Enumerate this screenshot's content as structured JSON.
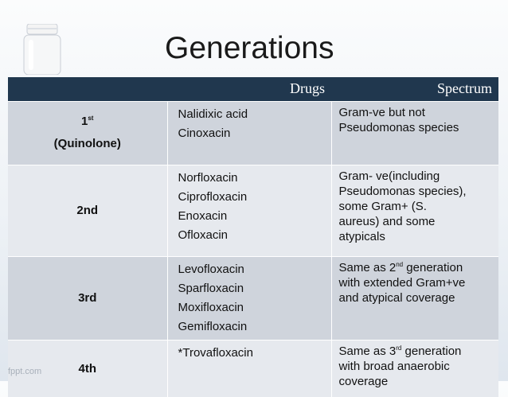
{
  "title": "Generations",
  "watermark": "fppt.com",
  "table": {
    "headers": {
      "generation": "",
      "drugs": "Drugs",
      "spectrum": "Spectrum"
    },
    "rows": [
      {
        "gen_number": "1",
        "gen_sup": "st",
        "gen_sub": "(Quinolone)",
        "drugs": [
          "Nalidixic acid",
          "Cinoxacin"
        ],
        "spectrum_text": "Gram-ve but not Pseudomonas species"
      },
      {
        "generation": "2nd",
        "drugs": [
          "Norfloxacin",
          "Ciprofloxacin",
          "Enoxacin",
          "Ofloxacin"
        ],
        "spectrum_lines": [
          "Gram- ve(including",
          "Pseudomonas species),",
          "some Gram+ (S.",
          "aureus) and some",
          "atypicals"
        ]
      },
      {
        "generation": "3rd",
        "drugs": [
          "Levofloxacin",
          "Sparfloxacin",
          "Moxifloxacin",
          "Gemifloxacin"
        ],
        "spectrum_pre": "Same as 2",
        "spectrum_sup": "nd",
        "spectrum_post": " generation",
        "spectrum_lines": [
          "with extended Gram+ve",
          "and atypical coverage"
        ]
      },
      {
        "generation": "4th",
        "drugs": [
          "*Trovafloxacin"
        ],
        "spectrum_pre": "Same as 3",
        "spectrum_sup": "rd",
        "spectrum_post": " generation",
        "spectrum_lines": [
          "with broad anaerobic",
          "coverage"
        ]
      }
    ]
  }
}
